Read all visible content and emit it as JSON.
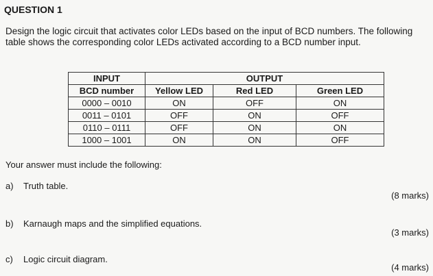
{
  "title": "QUESTION 1",
  "intro": "Design the logic circuit that activates color LEDs based on the input of BCD numbers. The following table shows the corresponding color LEDs activated according to a BCD number input.",
  "table": {
    "group_headers": [
      "INPUT",
      "OUTPUT"
    ],
    "headers": [
      "BCD number",
      "Yellow LED",
      "Red LED",
      "Green LED"
    ],
    "rows": [
      [
        "0000 – 0010",
        "ON",
        "OFF",
        "ON"
      ],
      [
        "0011 – 0101",
        "OFF",
        "ON",
        "OFF"
      ],
      [
        "0110 – 0111",
        "OFF",
        "ON",
        "ON"
      ],
      [
        "1000 – 1001",
        "ON",
        "ON",
        "OFF"
      ]
    ]
  },
  "answer_intro": "Your answer must include the following:",
  "parts": [
    {
      "label": "a)",
      "text": "Truth table.",
      "marks": "(8 marks)"
    },
    {
      "label": "b)",
      "text": "Karnaugh maps and the simplified equations.",
      "marks": "(3 marks)"
    },
    {
      "label": "c)",
      "text": "Logic circuit diagram.",
      "marks": "(4 marks)"
    }
  ]
}
